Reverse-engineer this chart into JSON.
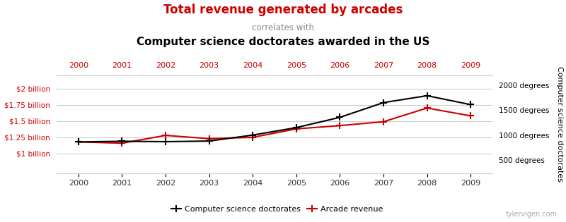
{
  "years": [
    2000,
    2001,
    2002,
    2003,
    2004,
    2005,
    2006,
    2007,
    2008,
    2009
  ],
  "doctorates": [
    862,
    875,
    867,
    880,
    1000,
    1150,
    1357,
    1654,
    1793,
    1613
  ],
  "arcade_revenue_billions": [
    1.18,
    1.16,
    1.28,
    1.23,
    1.25,
    1.38,
    1.43,
    1.49,
    1.7,
    1.58
  ],
  "title_red": "Total revenue generated by arcades",
  "title_correlates": "correlates with",
  "title_black": "Computer science doctorates awarded in the US",
  "ylabel_left": "Arcade revenue",
  "ylabel_right": "Computer science doctorates",
  "line1_label": "Computer science doctorates",
  "line2_label": "Arcade revenue",
  "left_ytick_vals": [
    1000000000,
    1250000000,
    1500000000,
    1750000000,
    2000000000
  ],
  "left_ytick_labels": [
    "$1 billion",
    "$1.25 billion",
    "$1.5 billion",
    "$1.75 billion",
    "$2 billion"
  ],
  "right_ytick_vals": [
    500,
    1000,
    1500,
    2000
  ],
  "right_ytick_labels": [
    "500 degrees",
    "1000 degrees",
    "1500 degrees",
    "2000 degrees"
  ],
  "ylim_left": [
    700000000,
    2200000000
  ],
  "ylim_right": [
    233,
    2200
  ],
  "doc_color": "#000000",
  "rev_color": "#cc0000",
  "grid_color": "#cccccc",
  "title_red_color": "#cc0000",
  "title_black_color": "#000000",
  "correlates_color": "#888888",
  "watermark": "tylervigen.com",
  "top_xtick_color": "#cc0000",
  "figsize": [
    8.0,
    3.15
  ],
  "dpi": 100
}
